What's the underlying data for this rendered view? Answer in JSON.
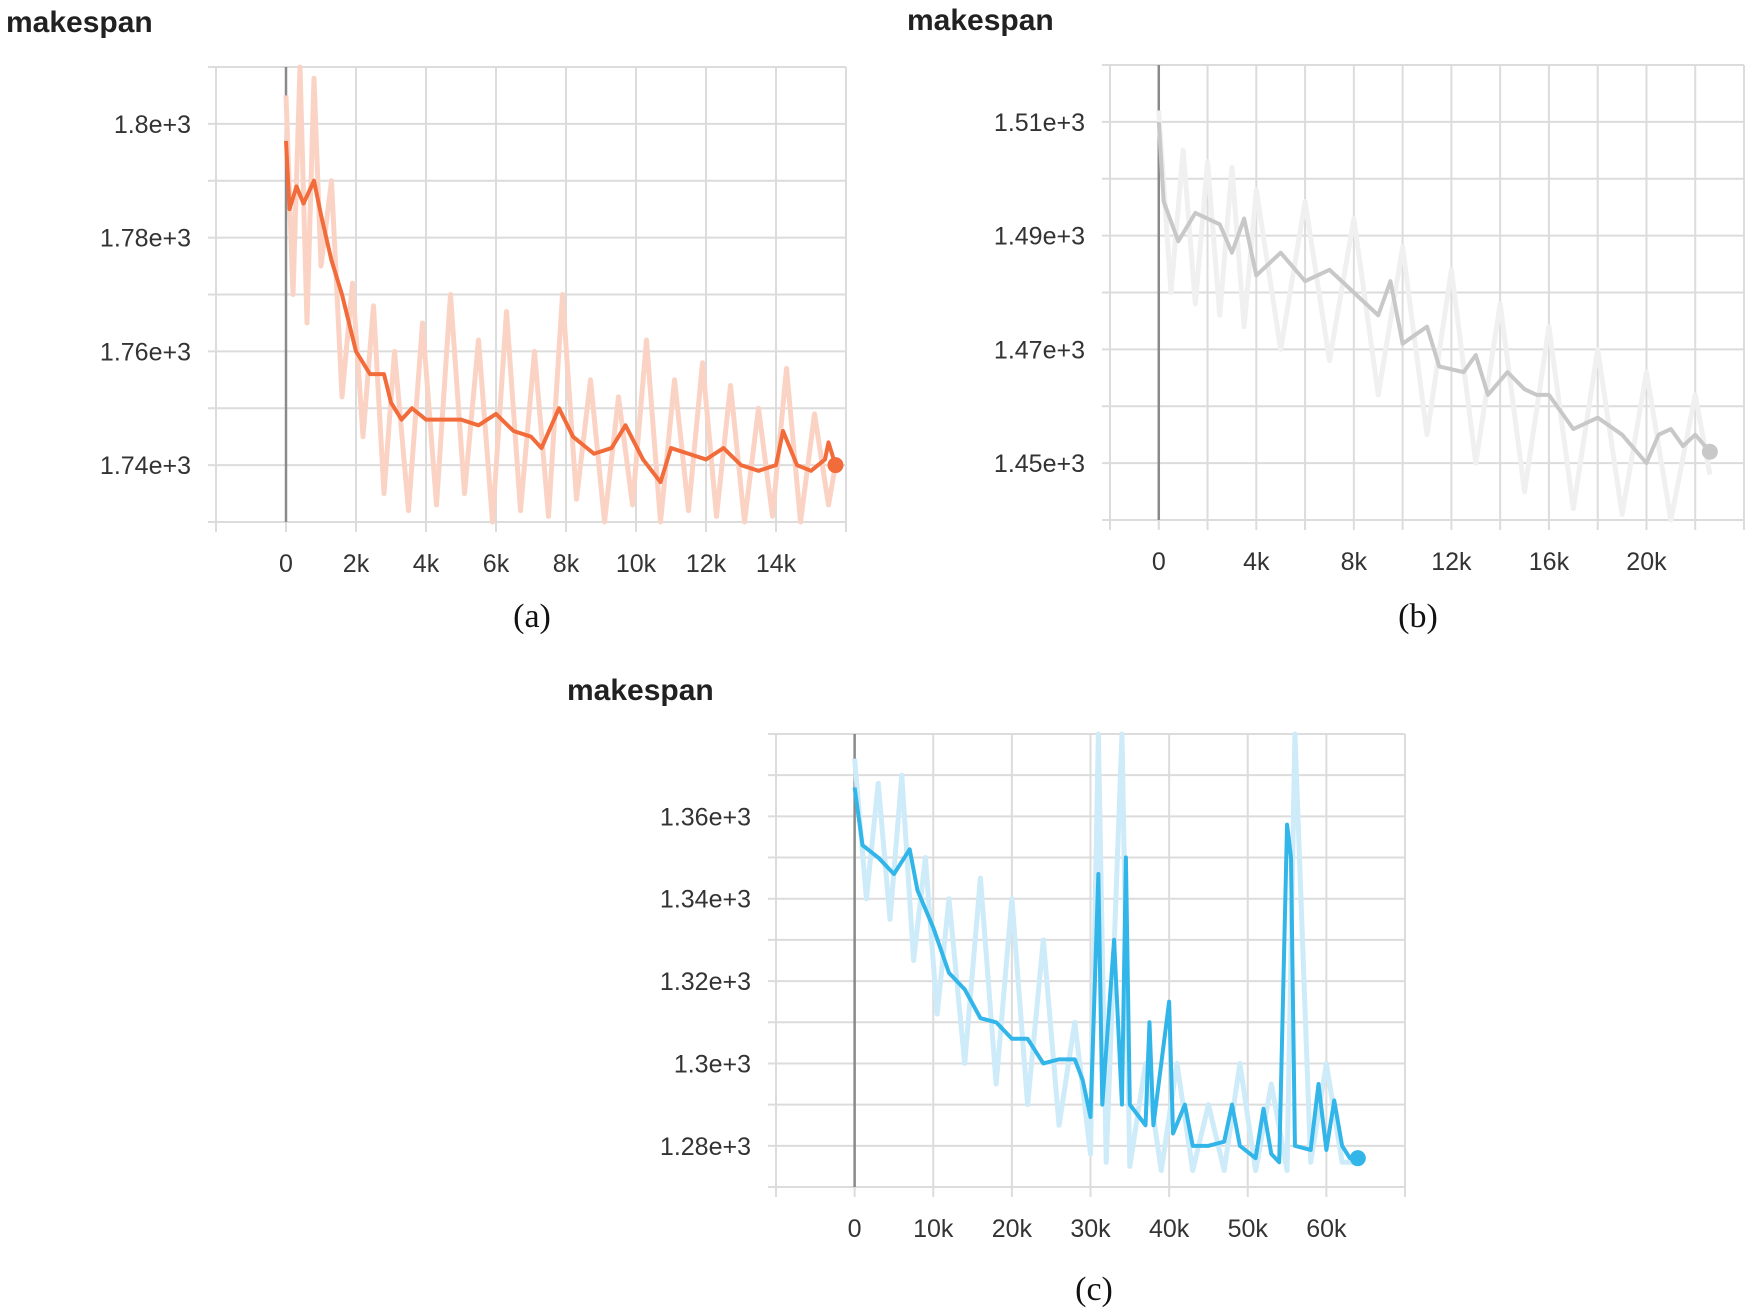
{
  "chart_data": [
    {
      "type": "line",
      "title": "makespan",
      "caption": "(a)",
      "color": "#f26b3a",
      "raw_color": "#fbd3c4",
      "xlim": [
        -2000,
        16000
      ],
      "ylim": [
        1730,
        1810
      ],
      "x_grid_step": 2000,
      "y_grid_step": 10,
      "grid": true,
      "x_ticks": [
        0,
        2000,
        4000,
        6000,
        8000,
        10000,
        12000,
        14000
      ],
      "x_tick_labels": [
        "0",
        "2k",
        "4k",
        "6k",
        "8k",
        "10k",
        "12k",
        "14k"
      ],
      "y_ticks": [
        1740,
        1760,
        1780,
        1800
      ],
      "y_tick_labels": [
        "1.74e+3",
        "1.76e+3",
        "1.78e+3",
        "1.8e+3"
      ],
      "series": [
        {
          "x": [
            0,
            100,
            300,
            500,
            800,
            1000,
            1300,
            1600,
            2000,
            2400,
            2800,
            3000,
            3300,
            3600,
            4000,
            4500,
            5000,
            5500,
            6000,
            6500,
            7000,
            7300,
            7800,
            8200,
            8800,
            9300,
            9700,
            10200,
            10700,
            11000,
            11500,
            12000,
            12500,
            13000,
            13500,
            14000,
            14200,
            14600,
            15000,
            15400,
            15500,
            15700
          ],
          "y": [
            1797,
            1785,
            1789,
            1786,
            1790,
            1784,
            1776,
            1770,
            1760,
            1756,
            1756,
            1751,
            1748,
            1750,
            1748,
            1748,
            1748,
            1747,
            1749,
            1746,
            1745,
            1743,
            1750,
            1745,
            1742,
            1743,
            1747,
            1741,
            1737,
            1743,
            1742,
            1741,
            1743,
            1740,
            1739,
            1740,
            1746,
            1740,
            1739,
            1741,
            1744,
            1740
          ]
        }
      ],
      "raw": {
        "x": [
          0,
          200,
          400,
          600,
          800,
          1000,
          1300,
          1600,
          1900,
          2200,
          2500,
          2800,
          3100,
          3500,
          3900,
          4300,
          4700,
          5100,
          5500,
          5900,
          6300,
          6700,
          7100,
          7500,
          7900,
          8300,
          8700,
          9100,
          9500,
          9900,
          10300,
          10700,
          11100,
          11500,
          11900,
          12300,
          12700,
          13100,
          13500,
          13900,
          14300,
          14700,
          15100,
          15500,
          15700
        ],
        "y": [
          1805,
          1770,
          1810,
          1765,
          1808,
          1775,
          1790,
          1752,
          1772,
          1745,
          1768,
          1735,
          1760,
          1732,
          1765,
          1733,
          1770,
          1735,
          1762,
          1730,
          1767,
          1732,
          1760,
          1731,
          1770,
          1734,
          1755,
          1730,
          1752,
          1733,
          1762,
          1729,
          1755,
          1732,
          1758,
          1731,
          1754,
          1730,
          1750,
          1731,
          1757,
          1730,
          1749,
          1733,
          1740
        ]
      }
    },
    {
      "type": "line",
      "title": "makespan",
      "caption": "(b)",
      "color": "#c8c8c8",
      "raw_color": "#f0f0f0",
      "xlim": [
        -2000,
        24000
      ],
      "ylim": [
        1440,
        1520
      ],
      "x_grid_step": 2000,
      "y_grid_step": 10,
      "grid": true,
      "x_ticks": [
        0,
        4000,
        8000,
        12000,
        16000,
        20000
      ],
      "x_tick_labels": [
        "0",
        "4k",
        "8k",
        "12k",
        "16k",
        "20k"
      ],
      "y_ticks": [
        1450,
        1470,
        1490,
        1510
      ],
      "y_tick_labels": [
        "1.45e+3",
        "1.47e+3",
        "1.49e+3",
        "1.51e+3"
      ],
      "series": [
        {
          "x": [
            0,
            200,
            800,
            1500,
            2500,
            3000,
            3500,
            4000,
            5000,
            6000,
            7000,
            8000,
            9000,
            9500,
            10000,
            11000,
            11500,
            12500,
            13000,
            13500,
            14300,
            15000,
            15500,
            16000,
            17000,
            18000,
            19000,
            20000,
            20500,
            21000,
            21500,
            22000,
            22600
          ],
          "y": [
            1510,
            1496,
            1489,
            1494,
            1492,
            1487,
            1493,
            1483,
            1487,
            1482,
            1484,
            1480,
            1476,
            1482,
            1471,
            1474,
            1467,
            1466,
            1469,
            1462,
            1466,
            1463,
            1462,
            1462,
            1456,
            1458,
            1455,
            1450,
            1455,
            1456,
            1453,
            1455,
            1452
          ]
        }
      ],
      "raw": {
        "x": [
          0,
          500,
          1000,
          1500,
          2000,
          2500,
          3000,
          3500,
          4000,
          5000,
          6000,
          7000,
          8000,
          9000,
          10000,
          11000,
          12000,
          13000,
          14000,
          15000,
          16000,
          17000,
          18000,
          19000,
          20000,
          21000,
          22000,
          22600
        ],
        "y": [
          1512,
          1480,
          1505,
          1478,
          1503,
          1476,
          1502,
          1474,
          1498,
          1470,
          1496,
          1468,
          1493,
          1462,
          1488,
          1455,
          1484,
          1450,
          1478,
          1445,
          1474,
          1442,
          1470,
          1441,
          1466,
          1440,
          1462,
          1448
        ]
      }
    },
    {
      "type": "line",
      "title": "makespan",
      "caption": "(c)",
      "color": "#32b5e8",
      "raw_color": "#cdebf8",
      "xlim": [
        -10000,
        70000
      ],
      "ylim": [
        1270,
        1380
      ],
      "x_grid_step": 10000,
      "y_grid_step": 10,
      "grid": true,
      "x_ticks": [
        0,
        10000,
        20000,
        30000,
        40000,
        50000,
        60000
      ],
      "x_tick_labels": [
        "0",
        "10k",
        "20k",
        "30k",
        "40k",
        "50k",
        "60k"
      ],
      "y_ticks": [
        1280,
        1300,
        1320,
        1340,
        1360
      ],
      "y_tick_labels": [
        "1.28e+3",
        "1.3e+3",
        "1.32e+3",
        "1.34e+3",
        "1.36e+3"
      ],
      "series": [
        {
          "x": [
            0,
            1000,
            3000,
            5000,
            7000,
            8000,
            10000,
            12000,
            14000,
            16000,
            18000,
            20000,
            22000,
            24000,
            26000,
            28000,
            29000,
            30000,
            31000,
            31500,
            33000,
            34000,
            34500,
            35000,
            37000,
            37500,
            38000,
            40000,
            40500,
            42000,
            43000,
            45000,
            47000,
            48000,
            49000,
            51000,
            52000,
            53000,
            54000,
            55000,
            55500,
            56000,
            58000,
            59000,
            60000,
            61000,
            62000,
            63000,
            64000
          ],
          "y": [
            1367,
            1353,
            1350,
            1346,
            1352,
            1342,
            1333,
            1322,
            1318,
            1311,
            1310,
            1306,
            1306,
            1300,
            1301,
            1301,
            1296,
            1287,
            1346,
            1290,
            1330,
            1290,
            1350,
            1290,
            1285,
            1310,
            1285,
            1315,
            1283,
            1290,
            1280,
            1280,
            1281,
            1290,
            1280,
            1277,
            1289,
            1278,
            1276,
            1358,
            1350,
            1280,
            1279,
            1295,
            1279,
            1291,
            1280,
            1277,
            1277
          ]
        }
      ],
      "raw": {
        "x": [
          0,
          1500,
          3000,
          4500,
          6000,
          7500,
          9000,
          10500,
          12000,
          14000,
          16000,
          18000,
          20000,
          22000,
          24000,
          26000,
          28000,
          30000,
          31000,
          32000,
          34000,
          35000,
          37000,
          39000,
          41000,
          43000,
          45000,
          47000,
          49000,
          51000,
          53000,
          55000,
          56000,
          58000,
          60000,
          62000,
          64000
        ],
        "y": [
          1374,
          1340,
          1368,
          1335,
          1370,
          1325,
          1350,
          1312,
          1340,
          1300,
          1345,
          1295,
          1340,
          1290,
          1330,
          1285,
          1310,
          1278,
          1380,
          1276,
          1380,
          1275,
          1300,
          1274,
          1300,
          1274,
          1290,
          1274,
          1300,
          1274,
          1295,
          1274,
          1380,
          1276,
          1300,
          1276,
          1276
        ]
      }
    }
  ]
}
